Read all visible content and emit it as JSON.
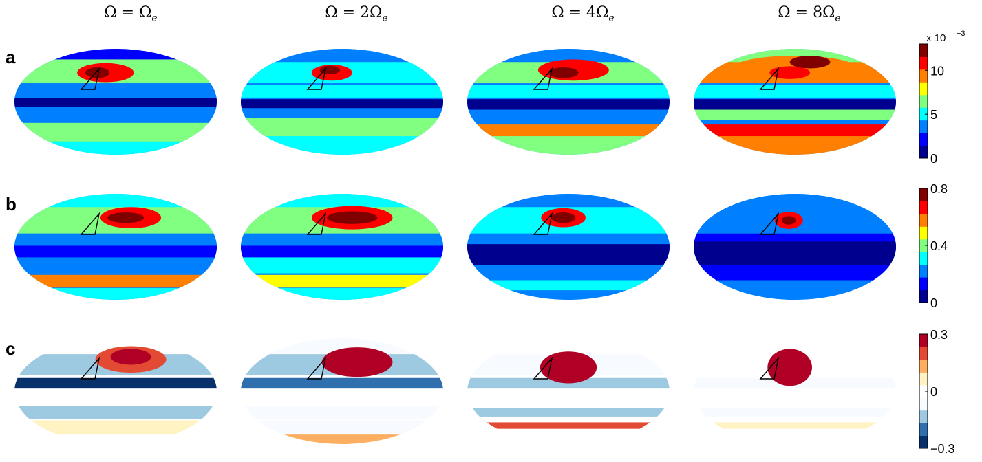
{
  "columns": [
    {
      "prefix": "Ω = ",
      "coef": "",
      "sym": "Ω",
      "sub": "e"
    },
    {
      "prefix": "Ω = ",
      "coef": "2",
      "sym": "Ω",
      "sub": "e"
    },
    {
      "prefix": "Ω = ",
      "coef": "4",
      "sym": "Ω",
      "sub": "e"
    },
    {
      "prefix": "Ω = ",
      "coef": "8",
      "sym": "Ω",
      "sub": "e"
    }
  ],
  "rows": [
    {
      "label": "a",
      "colormap": "jet",
      "colorbar": {
        "ticks": [
          "0",
          "5",
          "10"
        ],
        "tick_values": [
          0,
          5,
          10
        ],
        "range": [
          0,
          13
        ],
        "multiplier": "x 10",
        "exponent": "−3"
      }
    },
    {
      "label": "b",
      "colormap": "jet",
      "colorbar": {
        "ticks": [
          "0",
          "0.4",
          "0.8"
        ],
        "tick_values": [
          0,
          0.4,
          0.8
        ],
        "range": [
          0,
          0.8
        ]
      }
    },
    {
      "label": "c",
      "colormap": "diverging",
      "colorbar": {
        "ticks": [
          "−0.3",
          "0",
          "0.3"
        ],
        "tick_values": [
          -0.3,
          0,
          0.3
        ],
        "range": [
          -0.3,
          0.3
        ]
      }
    }
  ],
  "chart_data": {
    "type": "heatmap",
    "projection": "mollweide",
    "grid": false,
    "legend": "right colorbars, one per row",
    "overlay": "black triangle outline near the center-upper region of each map",
    "colors": {
      "jet": [
        "#00008f",
        "#0000ff",
        "#0080ff",
        "#00ffff",
        "#80ff80",
        "#ffff00",
        "#ff8000",
        "#ff0000",
        "#800000"
      ],
      "diverging": [
        "#08306b",
        "#2f6fae",
        "#9ecae1",
        "#f7fbff",
        "#ffffff",
        "#fff3c4",
        "#fdae61",
        "#e34a33",
        "#b10026"
      ]
    }
  }
}
